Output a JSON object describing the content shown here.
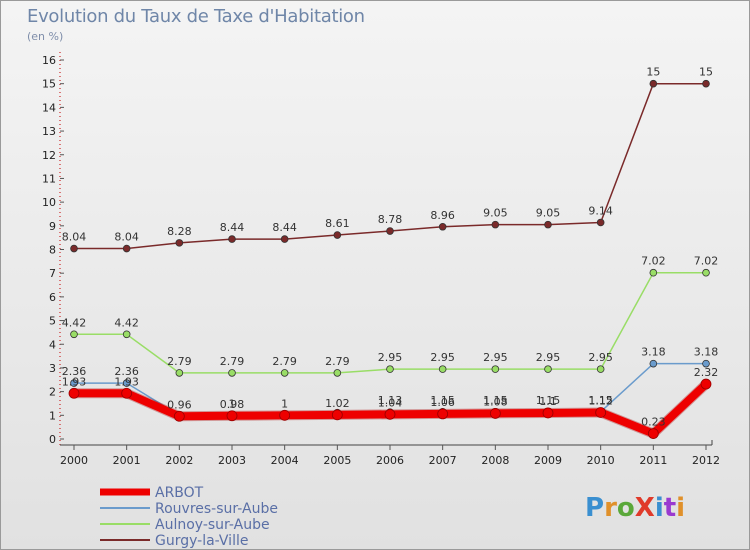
{
  "header": {
    "title": "Evolution du Taux de Taxe d'Habitation",
    "subtitle": "(en %)"
  },
  "logo": {
    "text": "ProXiti",
    "colors": [
      "#3a8fd0",
      "#e0902a",
      "#5aa83a",
      "#e03a2a",
      "#3a8fd0",
      "#9a3ad0",
      "#e0902a"
    ]
  },
  "chart_data": {
    "type": "line",
    "title": "Evolution du Taux de Taxe d'Habitation",
    "ylabel": "(en %)",
    "x": [
      "2000",
      "2001",
      "2002",
      "2003",
      "2004",
      "2005",
      "2006",
      "2007",
      "2008",
      "2009",
      "2010",
      "2011",
      "2012"
    ],
    "ylim": [
      0,
      16
    ],
    "yticks": [
      0,
      1,
      2,
      3,
      4,
      5,
      6,
      7,
      8,
      9,
      10,
      11,
      12,
      13,
      14,
      15,
      16
    ],
    "grid": false,
    "legend_position": "bottom-left",
    "series": [
      {
        "name": "ARBOT",
        "color": "#ee0000",
        "thick": true,
        "values": [
          1.93,
          1.93,
          0.96,
          0.98,
          1,
          1.02,
          1.04,
          1.06,
          1.08,
          1.1,
          1.12,
          0.23,
          2.32
        ],
        "labels": [
          "1.93",
          "1.93",
          "0.96",
          "0.98",
          "1",
          "1.02",
          "1.04",
          "1.06",
          "1.08",
          "1.1",
          "1.12",
          "0.23",
          "2.32"
        ]
      },
      {
        "name": "Rouvres-sur-Aube",
        "color": "#6a9bcc",
        "thick": false,
        "values": [
          2.36,
          2.36,
          1,
          1,
          1.03,
          1.11,
          1.13,
          1.15,
          1.15,
          1.15,
          1.15,
          3.18,
          3.18
        ],
        "labels": [
          "2.36",
          "2.36",
          "",
          "1",
          "",
          "",
          "1.13",
          "1.15",
          "1.15",
          "1.15",
          "1.15",
          "3.18",
          "3.18"
        ]
      },
      {
        "name": "Aulnoy-sur-Aube",
        "color": "#99dd66",
        "thick": false,
        "values": [
          4.42,
          4.42,
          2.79,
          2.79,
          2.79,
          2.79,
          2.95,
          2.95,
          2.95,
          2.95,
          2.95,
          7.02,
          7.02
        ],
        "labels": [
          "4.42",
          "4.42",
          "2.79",
          "2.79",
          "2.79",
          "2.79",
          "2.95",
          "2.95",
          "2.95",
          "2.95",
          "2.95",
          "7.02",
          "7.02"
        ]
      },
      {
        "name": "Gurgy-la-Ville",
        "color": "#7a2a2a",
        "thick": false,
        "values": [
          8.04,
          8.04,
          8.28,
          8.44,
          8.44,
          8.61,
          8.78,
          8.96,
          9.05,
          9.05,
          9.14,
          15,
          15
        ],
        "labels": [
          "8.04",
          "8.04",
          "8.28",
          "8.44",
          "8.44",
          "8.61",
          "8.78",
          "8.96",
          "9.05",
          "9.05",
          "9.14",
          "15",
          "15"
        ]
      }
    ]
  }
}
